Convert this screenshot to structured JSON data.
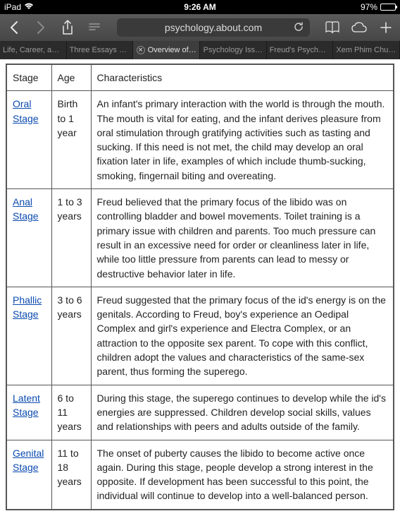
{
  "status": {
    "device": "iPad",
    "time": "9:26 AM",
    "battery_pct": "97%"
  },
  "toolbar": {
    "url": "psychology.about.com"
  },
  "tabs": [
    {
      "label": "Life, Career, an…",
      "active": false
    },
    {
      "label": "Three Essays o…",
      "active": false
    },
    {
      "label": "Overview of…",
      "active": true
    },
    {
      "label": "Psychology Iss…",
      "active": false
    },
    {
      "label": "Freud's Psycho…",
      "active": false
    },
    {
      "label": "Xem Phim Chuy…",
      "active": false
    }
  ],
  "table": {
    "headers": {
      "stage": "Stage",
      "age": "Age",
      "char": "Characteristics"
    },
    "rows": [
      {
        "stage": "Oral Stage",
        "age": "Birth to 1 year",
        "char": "An infant's primary interaction with the world is through the mouth. The mouth is vital for eating, and the infant derives pleasure from oral stimulation through gratifying activities such as tasting and sucking. If this need is not met, the child may develop an oral fixation later in life, examples of which include thumb-sucking, smoking, fingernail biting and overeating."
      },
      {
        "stage": "Anal Stage",
        "age": "1 to 3 years",
        "char": "Freud believed that the primary focus of the libido was on controlling bladder and bowel movements. Toilet training is a primary issue with children and parents. Too much pressure can result in an excessive need for order or cleanliness later in life, while too little pressure from parents can lead to messy or destructive behavior later in life."
      },
      {
        "stage": "Phallic Stage",
        "age": "3 to 6 years",
        "char": "Freud suggested that the primary focus of the id's energy is on the genitals. According to Freud, boy's experience an Oedipal Complex and girl's experience and Electra Complex, or an attraction to the opposite sex parent. To cope with this conflict, children adopt the values and characteristics of the same-sex parent, thus forming the superego."
      },
      {
        "stage": "Latent Stage",
        "age": "6 to 11 years",
        "char": "During this stage, the superego continues to develop while the id's energies are suppressed. Children develop social skills, values and relationships with peers and adults outside of the family."
      },
      {
        "stage": "Genital Stage",
        "age": "11 to 18 years",
        "char": "The onset of puberty causes the libido to become active once again. During this stage, people develop a strong interest in the opposite. If development has been successful to this point, the individual will continue to develop into a well-balanced person."
      }
    ]
  }
}
